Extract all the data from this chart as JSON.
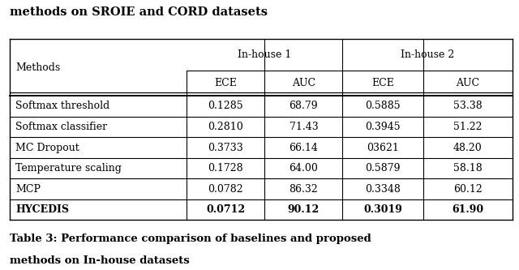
{
  "title_top": "methods on SROIE and CORD datasets",
  "caption_line1": "Table 3: Performance comparison of baselines and proposed",
  "caption_line2": "methods on In-house datasets",
  "rows": [
    {
      "method": "Softmax threshold",
      "data": [
        "0.1285",
        "68.79",
        "0.5885",
        "53.38"
      ],
      "bold": [
        false,
        false,
        false,
        false
      ]
    },
    {
      "method": "Softmax classifier",
      "data": [
        "0.2810",
        "71.43",
        "0.3945",
        "51.22"
      ],
      "bold": [
        false,
        false,
        false,
        false
      ]
    },
    {
      "method": "MC Dropout",
      "data": [
        "0.3733",
        "66.14",
        "03621",
        "48.20"
      ],
      "bold": [
        false,
        false,
        false,
        false
      ]
    },
    {
      "method": "Temperature scaling",
      "data": [
        "0.1728",
        "64.00",
        "0.5879",
        "58.18"
      ],
      "bold": [
        false,
        false,
        false,
        false
      ]
    },
    {
      "method": "MCP",
      "data": [
        "0.0782",
        "86.32",
        "0.3348",
        "60.12"
      ],
      "bold": [
        false,
        false,
        false,
        false
      ]
    },
    {
      "method": "HYCEDIS",
      "data": [
        "0.0712",
        "90.12",
        "0.3019",
        "61.90"
      ],
      "bold": [
        true,
        true,
        true,
        true
      ]
    }
  ],
  "bg_color": "#ffffff",
  "text_color": "#000000",
  "font_size": 9.0,
  "caption_font_size": 9.5,
  "title_font_size": 10.5
}
